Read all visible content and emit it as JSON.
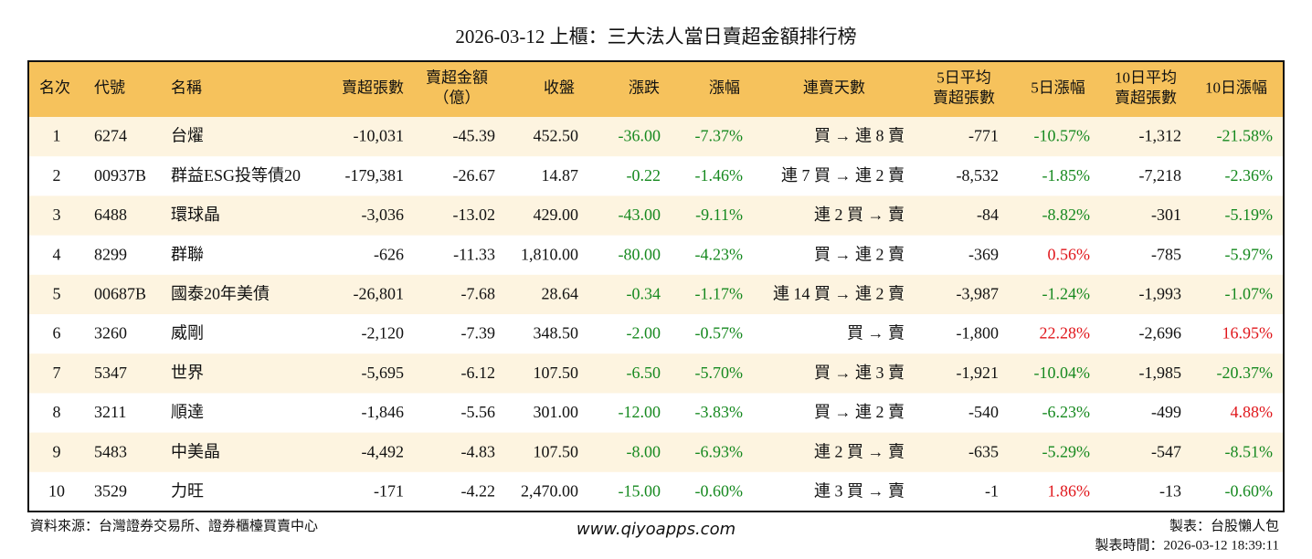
{
  "title": "2026-03-12 上櫃：三大法人當日賣超金額排行榜",
  "table": {
    "headers": [
      [
        "名次"
      ],
      [
        "代號"
      ],
      [
        "名稱"
      ],
      [
        "賣超張數"
      ],
      [
        "賣超金額",
        "（億）"
      ],
      [
        "收盤"
      ],
      [
        "漲跌"
      ],
      [
        "漲幅"
      ],
      [
        "連賣天數"
      ],
      [
        "5日平均",
        "賣超張數"
      ],
      [
        "5日漲幅"
      ],
      [
        "10日平均",
        "賣超張數"
      ],
      [
        "10日漲幅"
      ]
    ],
    "rows": [
      [
        "1",
        "6274",
        "台燿",
        "-10,031",
        "-45.39",
        "452.50",
        "-36.00",
        "-7.37%",
        "買 → 連 8 賣",
        "-771",
        "-10.57%",
        "-1,312",
        "-21.58%"
      ],
      [
        "2",
        "00937B",
        "群益ESG投等債20",
        "-179,381",
        "-26.67",
        "14.87",
        "-0.22",
        "-1.46%",
        "連 7 買 → 連 2 賣",
        "-8,532",
        "-1.85%",
        "-7,218",
        "-2.36%"
      ],
      [
        "3",
        "6488",
        "環球晶",
        "-3,036",
        "-13.02",
        "429.00",
        "-43.00",
        "-9.11%",
        "連 2 買 → 賣",
        "-84",
        "-8.82%",
        "-301",
        "-5.19%"
      ],
      [
        "4",
        "8299",
        "群聯",
        "-626",
        "-11.33",
        "1,810.00",
        "-80.00",
        "-4.23%",
        "買 → 連 2 賣",
        "-369",
        "0.56%",
        "-785",
        "-5.97%"
      ],
      [
        "5",
        "00687B",
        "國泰20年美債",
        "-26,801",
        "-7.68",
        "28.64",
        "-0.34",
        "-1.17%",
        "連 14 買 → 連 2 賣",
        "-3,987",
        "-1.24%",
        "-1,993",
        "-1.07%"
      ],
      [
        "6",
        "3260",
        "威剛",
        "-2,120",
        "-7.39",
        "348.50",
        "-2.00",
        "-0.57%",
        "買 → 賣",
        "-1,800",
        "22.28%",
        "-2,696",
        "16.95%"
      ],
      [
        "7",
        "5347",
        "世界",
        "-5,695",
        "-6.12",
        "107.50",
        "-6.50",
        "-5.70%",
        "買 → 連 3 賣",
        "-1,921",
        "-10.04%",
        "-1,985",
        "-20.37%"
      ],
      [
        "8",
        "3211",
        "順達",
        "-1,846",
        "-5.56",
        "301.00",
        "-12.00",
        "-3.83%",
        "買 → 連 2 賣",
        "-540",
        "-6.23%",
        "-499",
        "4.88%"
      ],
      [
        "9",
        "5483",
        "中美晶",
        "-4,492",
        "-4.83",
        "107.50",
        "-8.00",
        "-6.93%",
        "連 2 買 → 賣",
        "-635",
        "-5.29%",
        "-547",
        "-8.51%"
      ],
      [
        "10",
        "3529",
        "力旺",
        "-171",
        "-4.22",
        "2,470.00",
        "-15.00",
        "-0.60%",
        "連 3 買 → 賣",
        "-1",
        "1.86%",
        "-13",
        "-0.60%"
      ]
    ],
    "colored_columns": [
      6,
      7,
      10,
      12
    ],
    "up_color": "#e0161b",
    "down_color": "#16891f",
    "header_color": "#f6c25c",
    "stripe_color": "#fdf4e0"
  },
  "footer": {
    "source": "資料來源：台灣證券交易所、證券櫃檯買賣中心",
    "site": "www.qiyoapps.com",
    "author": "製表：台股懶人包",
    "time": "製表時間：2026-03-12 18:39:11"
  }
}
